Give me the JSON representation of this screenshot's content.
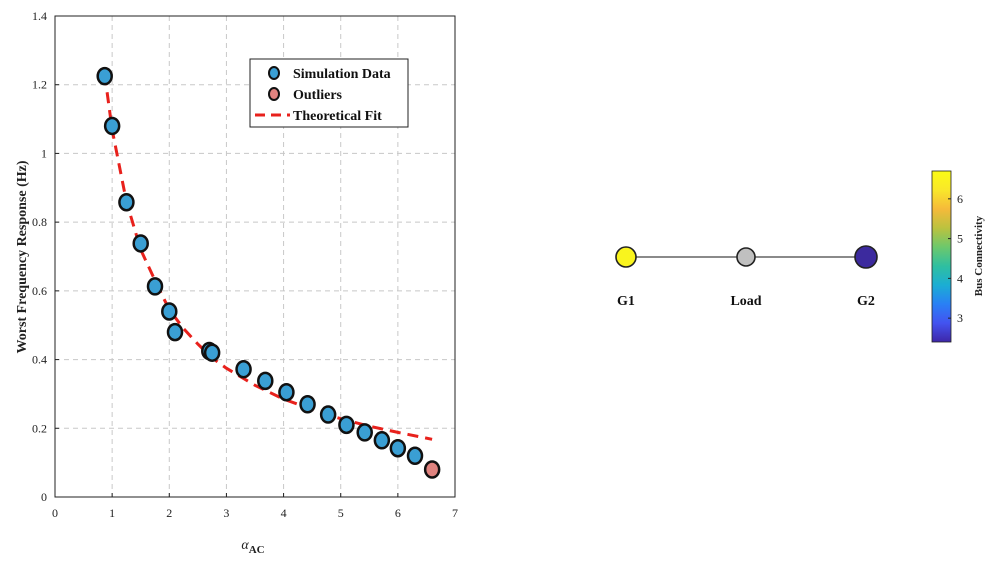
{
  "colors": {
    "simulation_fill": "#3a9fd4",
    "outlier_fill": "#e0837f",
    "fit_line": "#e8211c",
    "grid": "#c8c8c8",
    "node_g1": "#f9f41e",
    "node_load": "#c0c0c0",
    "node_g2": "#3c2a9e",
    "edge": "#444444"
  },
  "chart_data": [
    {
      "type": "scatter",
      "title": "",
      "xlabel": "α",
      "xlabel_subscript": "AC",
      "ylabel": "Worst Frequency Response (Hz)",
      "xlim": [
        0,
        7
      ],
      "ylim": [
        0,
        1.4
      ],
      "xticks": [
        "0",
        "1",
        "2",
        "3",
        "4",
        "5",
        "6",
        "7"
      ],
      "yticks": [
        "0",
        "0.2",
        "0.4",
        "0.6",
        "0.8",
        "1",
        "1.2",
        "1.4"
      ],
      "grid": true,
      "grid_style": "dashed",
      "legend_position": "top-right",
      "series": [
        {
          "name": "Simulation Data",
          "kind": "scatter",
          "x": [
            0.87,
            1.0,
            1.25,
            1.5,
            1.75,
            2.0,
            2.1,
            2.7,
            2.75,
            3.3,
            3.68,
            4.05,
            4.42,
            4.78,
            5.1,
            5.42,
            5.72,
            6.0,
            6.3
          ],
          "y": [
            1.225,
            1.08,
            0.858,
            0.738,
            0.613,
            0.54,
            0.48,
            0.425,
            0.42,
            0.372,
            0.338,
            0.305,
            0.27,
            0.24,
            0.21,
            0.188,
            0.165,
            0.142,
            0.12
          ]
        },
        {
          "name": "Outliers",
          "kind": "scatter",
          "x": [
            6.6
          ],
          "y": [
            0.08
          ]
        },
        {
          "name": "Theoretical Fit",
          "kind": "line",
          "style": "dashed",
          "x": [
            0.87,
            1.0,
            1.25,
            1.5,
            1.75,
            2.0,
            2.25,
            2.5,
            2.75,
            3.0,
            3.5,
            4.0,
            4.5,
            5.0,
            5.5,
            6.0,
            6.6
          ],
          "y": [
            1.23,
            1.07,
            0.86,
            0.72,
            0.63,
            0.545,
            0.49,
            0.445,
            0.405,
            0.375,
            0.325,
            0.285,
            0.255,
            0.228,
            0.206,
            0.188,
            0.168
          ]
        }
      ]
    },
    {
      "type": "network",
      "nodes": [
        {
          "label": "G1",
          "connectivity": 6.6,
          "color": "#f9f41e"
        },
        {
          "label": "Load",
          "connectivity": null,
          "color": "#c0c0c0"
        },
        {
          "label": "G2",
          "connectivity": 2.4,
          "color": "#3c2a9e"
        }
      ],
      "edges": [
        [
          "G1",
          "Load"
        ],
        [
          "Load",
          "G2"
        ]
      ],
      "colorbar": {
        "label": "Bus Connectivity",
        "range": [
          2.4,
          6.7
        ],
        "ticks": [
          "3",
          "4",
          "5",
          "6"
        ],
        "tick_values": [
          3,
          4,
          5,
          6
        ],
        "colormap": [
          "#3e26a8",
          "#4353f0",
          "#2980f5",
          "#1baed3",
          "#2fbfa0",
          "#6dc86c",
          "#bbc23f",
          "#f5ba3a",
          "#f9e72a",
          "#fafb15"
        ]
      }
    }
  ]
}
